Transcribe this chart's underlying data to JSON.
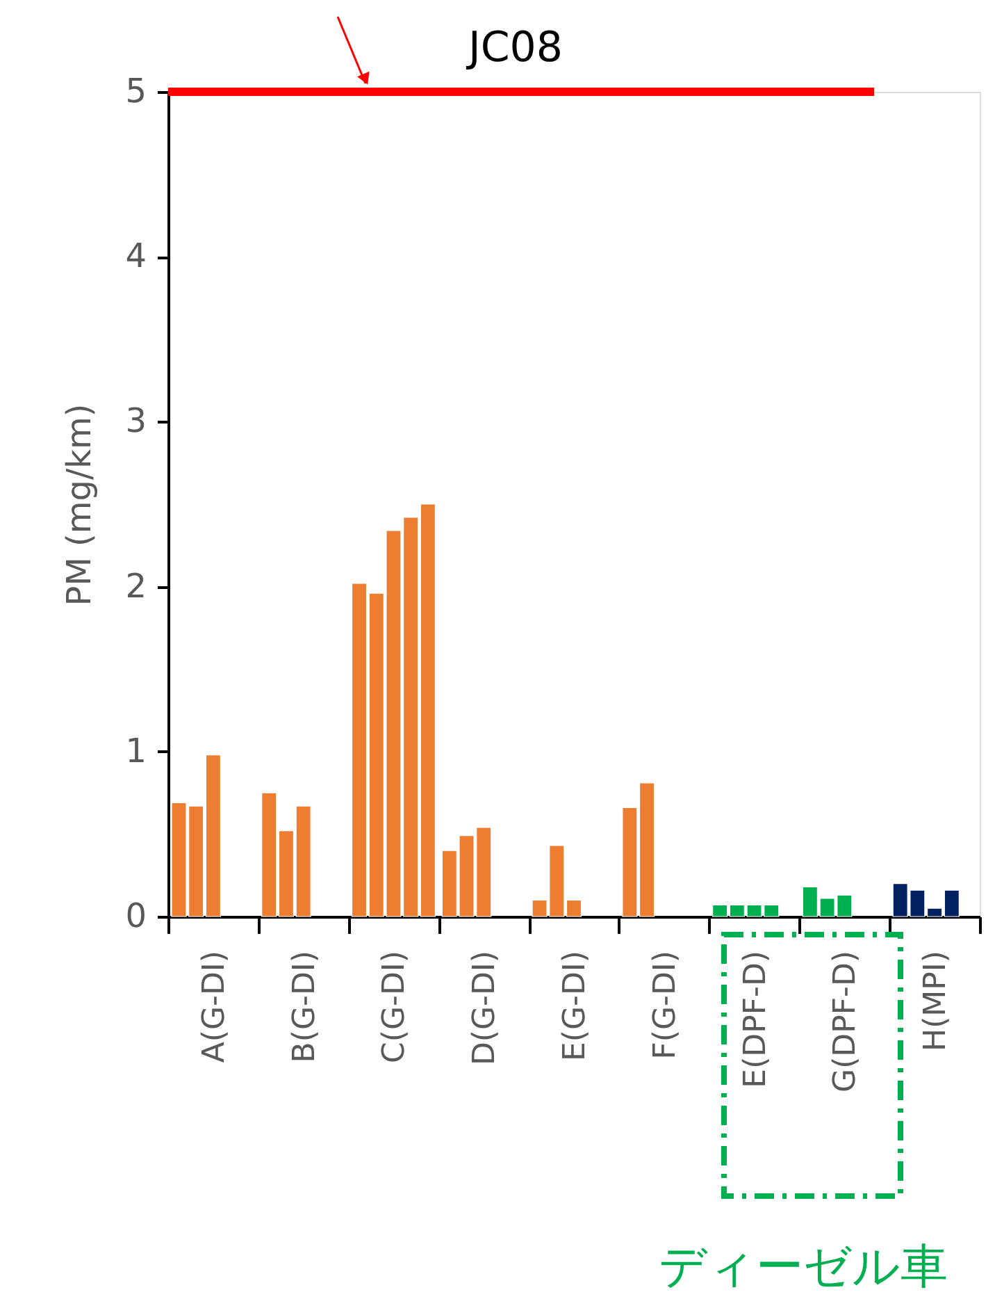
{
  "chart_data": {
    "type": "bar",
    "ylabel": "PM (mg/km)",
    "categories": [
      "A(G-DI)",
      "B(G-DI)",
      "C(G-DI)",
      "D(G-DI)",
      "E(G-DI)",
      "F(G-DI)",
      "E(DPF-D)",
      "G(DPF-D)",
      "H(MPI)"
    ],
    "series": [
      {
        "colors": [
          "#ed7d31",
          "#ed7d31",
          "#ed7d31",
          "#ed7d31",
          "#ed7d31",
          "#ed7d31",
          "#00b050",
          "#00b050",
          "#002060"
        ],
        "values": [
          0.69,
          0.75,
          2.02,
          0.4,
          0.1,
          0.66,
          0.07,
          0.18,
          0.2
        ]
      },
      {
        "colors": [
          "#ed7d31",
          "#ed7d31",
          "#ed7d31",
          "#ed7d31",
          "#ed7d31",
          "#ed7d31",
          "#00b050",
          "#00b050",
          "#002060"
        ],
        "values": [
          0.67,
          0.52,
          1.96,
          0.49,
          0.43,
          0.81,
          0.07,
          0.11,
          0.16
        ]
      },
      {
        "colors": [
          "#ed7d31",
          "#ed7d31",
          "#ed7d31",
          "#ed7d31",
          "#ed7d31",
          "#ed7d31",
          "#00b050",
          "#00b050",
          "#002060"
        ],
        "values": [
          0.98,
          0.67,
          2.34,
          0.54,
          0.1,
          null,
          0.07,
          0.13,
          0.05
        ]
      },
      {
        "colors": [
          "#ed7d31",
          "#ed7d31",
          "#ed7d31",
          "#ed7d31",
          "#ed7d31",
          "#ed7d31",
          "#00b050",
          "#00b050",
          "#002060"
        ],
        "values": [
          null,
          null,
          2.42,
          null,
          null,
          null,
          0.07,
          null,
          0.16
        ]
      },
      {
        "colors": [
          "#ed7d31",
          "#ed7d31",
          "#ed7d31",
          "#ed7d31",
          "#ed7d31",
          "#ed7d31",
          "#00b050",
          "#00b050",
          "#002060"
        ],
        "values": [
          null,
          null,
          2.5,
          null,
          null,
          null,
          null,
          null,
          null
        ]
      }
    ],
    "ylim": [
      0,
      5
    ],
    "yticks": [
      0,
      1,
      2,
      3,
      4,
      5
    ],
    "grid": false,
    "ref_lines": [
      {
        "axis": "y",
        "value": 5,
        "label": "JC08",
        "color": "#ff0000"
      }
    ],
    "annotations": [
      "ディーゼル車"
    ]
  }
}
